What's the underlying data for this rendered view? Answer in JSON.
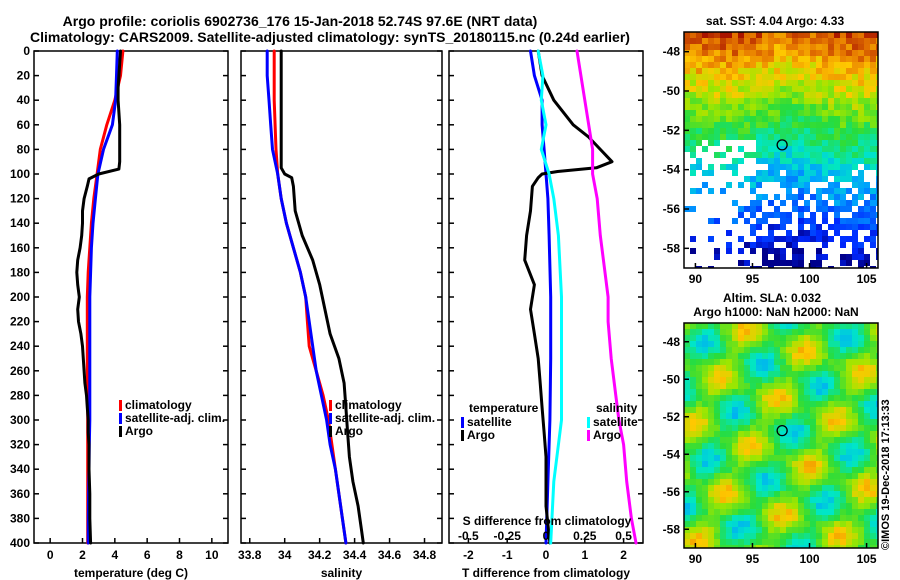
{
  "header": {
    "title_line1": "Argo profile: coriolis 6902736_176 15-Jan-2018 52.74S 97.6E (NRT data)",
    "title_line2": "Climatology: CARS2009. Satellite-adjusted climatology: synTS_20180115.nc (0.24d earlier)"
  },
  "watermark": "©IMOS 19-Dec-2018 17:13:33",
  "depth_ticks": [
    "0",
    "20",
    "40",
    "60",
    "80",
    "100",
    "120",
    "140",
    "160",
    "180",
    "200",
    "220",
    "240",
    "260",
    "280",
    "300",
    "320",
    "340",
    "360",
    "380",
    "400"
  ],
  "colors": {
    "climatology": "#ff0000",
    "satellite": "#0000ff",
    "argo": "#000000",
    "sat_salinity": "#00ffff",
    "argo_salinity": "#ff00ff"
  },
  "chart_data": [
    {
      "type": "line",
      "xlabel": "temperature (deg C)",
      "ylabel": "depth",
      "xlim": [
        -1,
        11
      ],
      "ylim": [
        400,
        0
      ],
      "xticks": [
        "0",
        "2",
        "4",
        "6",
        "8",
        "10"
      ],
      "legend_position": "lower-right",
      "legend": [
        "climatology",
        "satellite-adj. clim.",
        "Argo"
      ],
      "series": [
        {
          "name": "climatology",
          "color": "#ff0000",
          "depth": [
            0,
            20,
            40,
            60,
            80,
            100,
            120,
            140,
            160,
            180,
            200,
            220,
            240,
            260,
            280,
            300,
            320,
            340,
            360,
            380,
            400
          ],
          "values": [
            4.5,
            4.35,
            4.0,
            3.5,
            3.1,
            2.9,
            2.7,
            2.55,
            2.45,
            2.35,
            2.3,
            2.3,
            2.3,
            2.3,
            2.32,
            2.32,
            2.32,
            2.32,
            2.32,
            2.32,
            2.32
          ]
        },
        {
          "name": "satellite-adj. clim.",
          "color": "#0000ff",
          "depth": [
            0,
            20,
            40,
            60,
            80,
            100,
            120,
            140,
            160,
            180,
            200,
            220,
            240,
            260,
            280,
            300,
            320,
            340,
            360,
            380,
            400
          ],
          "values": [
            4.15,
            4.1,
            4.05,
            3.85,
            3.3,
            2.95,
            2.8,
            2.65,
            2.55,
            2.5,
            2.45,
            2.45,
            2.45,
            2.45,
            2.45,
            2.45,
            2.42,
            2.4,
            2.38,
            2.36,
            2.35
          ]
        },
        {
          "name": "Argo",
          "color": "#000000",
          "depth": [
            0,
            10,
            20,
            30,
            40,
            50,
            60,
            70,
            80,
            90,
            96,
            100,
            104,
            110,
            120,
            130,
            140,
            150,
            160,
            170,
            180,
            190,
            200,
            210,
            220,
            230,
            240,
            250,
            260,
            270,
            280,
            290,
            300,
            310,
            320,
            340,
            360,
            380,
            400
          ],
          "values": [
            4.35,
            4.3,
            4.25,
            4.2,
            4.2,
            4.25,
            4.3,
            4.3,
            4.3,
            4.3,
            4.25,
            3.0,
            2.4,
            2.3,
            2.1,
            2.0,
            2.0,
            1.95,
            1.85,
            1.7,
            1.65,
            1.7,
            1.8,
            1.7,
            1.75,
            1.9,
            2.0,
            2.05,
            2.1,
            2.15,
            2.25,
            2.3,
            2.35,
            2.35,
            2.4,
            2.4,
            2.45,
            2.45,
            2.5
          ]
        }
      ]
    },
    {
      "type": "line",
      "xlabel": "salinity",
      "ylabel": "depth",
      "xlim": [
        33.75,
        34.9
      ],
      "ylim": [
        400,
        0
      ],
      "xticks": [
        "33.8",
        "34",
        "34.2",
        "34.4",
        "34.6",
        "34.8"
      ],
      "legend_position": "lower-right",
      "legend": [
        "climatology",
        "satellite-adj. clim.",
        "Argo"
      ],
      "series": [
        {
          "name": "climatology",
          "color": "#ff0000",
          "depth": [
            0,
            20,
            40,
            60,
            80,
            100,
            120,
            140,
            160,
            180,
            200,
            220,
            240,
            260,
            280,
            300,
            320,
            340,
            360,
            380,
            400
          ],
          "values": [
            33.94,
            33.94,
            33.94,
            33.945,
            33.95,
            33.96,
            33.98,
            34.01,
            34.05,
            34.09,
            34.12,
            34.13,
            34.14,
            34.18,
            34.22,
            34.25,
            34.27,
            34.29,
            34.31,
            34.33,
            34.35
          ]
        },
        {
          "name": "satellite-adj. clim.",
          "color": "#0000ff",
          "depth": [
            0,
            20,
            40,
            60,
            80,
            100,
            120,
            140,
            160,
            180,
            200,
            220,
            240,
            260,
            280,
            300,
            320,
            340,
            360,
            380,
            400
          ],
          "values": [
            33.9,
            33.9,
            33.91,
            33.92,
            33.93,
            33.96,
            33.98,
            34.01,
            34.05,
            34.09,
            34.12,
            34.14,
            34.16,
            34.18,
            34.21,
            34.24,
            34.26,
            34.29,
            34.31,
            34.33,
            34.35
          ]
        },
        {
          "name": "Argo",
          "color": "#000000",
          "depth": [
            0,
            20,
            40,
            60,
            80,
            95,
            100,
            103,
            110,
            130,
            150,
            170,
            190,
            210,
            230,
            250,
            270,
            290,
            310,
            330,
            350,
            370,
            390,
            400
          ],
          "values": [
            33.98,
            33.98,
            33.98,
            33.98,
            33.98,
            33.98,
            34.0,
            34.04,
            34.05,
            34.06,
            34.1,
            34.16,
            34.2,
            34.23,
            34.26,
            34.31,
            34.34,
            34.35,
            34.36,
            34.37,
            34.39,
            34.42,
            34.44,
            34.45
          ]
        }
      ]
    },
    {
      "type": "line",
      "xlabel": "T difference from climatology",
      "xlabel_top": "S difference from climatology",
      "ylabel": "depth",
      "xlim": [
        -2.5,
        2.5
      ],
      "ylim": [
        400,
        0
      ],
      "xticks": [
        "-2",
        "-1",
        "0",
        "1",
        "2"
      ],
      "xticks_top": [
        "-0.5",
        "-0.25",
        "0",
        "0.25",
        "0.5"
      ],
      "legend_position": "lower",
      "legend_temperature_title": "temperature",
      "legend_temperature": [
        "satellite",
        "Argo"
      ],
      "legend_salinity_title": "salinity",
      "legend_salinity": [
        "satellite",
        "Argo"
      ],
      "series": [
        {
          "name": "temperature satellite",
          "color": "#0000ff",
          "depth": [
            0,
            20,
            40,
            60,
            80,
            100,
            120,
            150,
            200,
            250,
            300,
            350,
            400
          ],
          "values": [
            -0.4,
            -0.3,
            -0.1,
            -0.1,
            -0.05,
            0.0,
            0.05,
            0.08,
            0.12,
            0.12,
            0.1,
            0.05,
            0.0
          ]
        },
        {
          "name": "temperature Argo",
          "color": "#000000",
          "depth": [
            0,
            20,
            40,
            60,
            70,
            80,
            90,
            95,
            98,
            100,
            103,
            110,
            130,
            150,
            170,
            190,
            210,
            230,
            250,
            270,
            290,
            310,
            330,
            350,
            370,
            400
          ],
          "values": [
            -0.2,
            -0.1,
            0.2,
            0.7,
            1.1,
            1.4,
            1.7,
            1.3,
            0.3,
            -0.1,
            -0.2,
            -0.35,
            -0.4,
            -0.5,
            -0.55,
            -0.3,
            -0.4,
            -0.3,
            -0.2,
            -0.15,
            -0.1,
            -0.05,
            0.0,
            0.0,
            0.0,
            0.1
          ]
        },
        {
          "name": "salinity satellite",
          "color": "#00ffff",
          "depth": [
            0,
            20,
            40,
            60,
            80,
            100,
            120,
            150,
            200,
            250,
            300,
            350,
            400
          ],
          "values": [
            -0.05,
            -0.02,
            -0.03,
            0.0,
            -0.03,
            0.02,
            0.05,
            0.08,
            0.1,
            0.1,
            0.1,
            0.05,
            0.03
          ]
        },
        {
          "name": "salinity Argo",
          "color": "#ff00ff",
          "depth": [
            0,
            40,
            80,
            100,
            120,
            150,
            180,
            200,
            220,
            250,
            280,
            300,
            320,
            350,
            380,
            400
          ],
          "values": [
            0.2,
            0.25,
            0.3,
            0.3,
            0.33,
            0.35,
            0.38,
            0.4,
            0.4,
            0.42,
            0.45,
            0.47,
            0.5,
            0.52,
            0.55,
            0.58
          ]
        }
      ]
    },
    {
      "type": "heatmap",
      "title": "sat. SST: 4.04 Argo: 4.33",
      "xticks": [
        "90",
        "95",
        "100",
        "105"
      ],
      "yticks": [
        "-48",
        "-50",
        "-52",
        "-54",
        "-56",
        "-58"
      ],
      "xlim": [
        89,
        106
      ],
      "ylim": [
        -59,
        -47
      ],
      "marker": {
        "lon": 97.6,
        "lat": -52.74
      }
    },
    {
      "type": "heatmap",
      "title_line1": "Altim. SLA: 0.032",
      "title_line2": "Argo h1000: NaN h2000: NaN",
      "xticks": [
        "90",
        "95",
        "100",
        "105"
      ],
      "yticks": [
        "-48",
        "-50",
        "-52",
        "-54",
        "-56",
        "-58"
      ],
      "xlim": [
        89,
        106
      ],
      "ylim": [
        -59,
        -47
      ],
      "marker": {
        "lon": 97.6,
        "lat": -52.74
      }
    }
  ]
}
